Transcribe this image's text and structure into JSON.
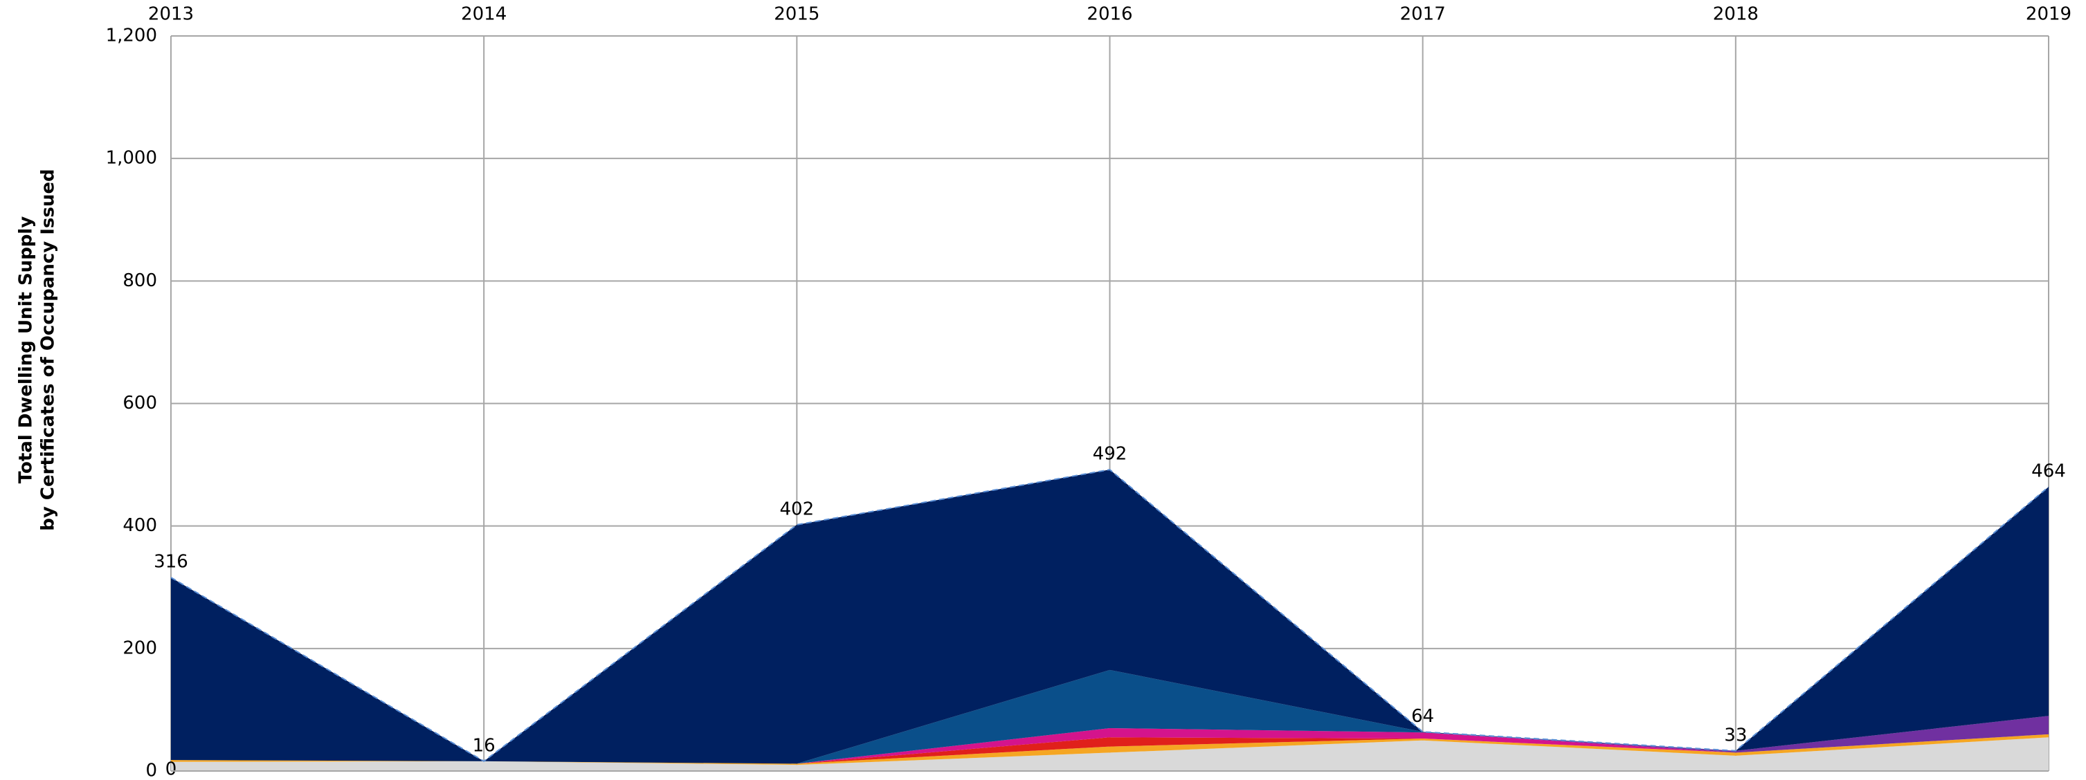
{
  "chart_data": {
    "type": "stacked_area",
    "ylabel": [
      "Total Dwelling Unit Supply",
      "by Certificates of Occupancy Issued"
    ],
    "categories": [
      "2013",
      "2014",
      "2015",
      "2016",
      "2017",
      "2018",
      "2019"
    ],
    "series": [
      {
        "color": "#d9d9d9",
        "values": [
          15,
          16,
          10,
          30,
          50,
          25,
          55
        ]
      },
      {
        "color": "#f5a623",
        "values": [
          3,
          0,
          2,
          10,
          3,
          5,
          5
        ]
      },
      {
        "color": "#e0201b",
        "values": [
          0,
          0,
          0,
          15,
          0,
          0,
          0
        ]
      },
      {
        "color": "#d4148c",
        "values": [
          0,
          0,
          0,
          15,
          10,
          0,
          0
        ]
      },
      {
        "color": "#7030a0",
        "values": [
          0,
          0,
          0,
          0,
          0,
          3,
          30
        ]
      },
      {
        "color": "#0a4f8a",
        "values": [
          0,
          0,
          0,
          95,
          1,
          0,
          0
        ]
      },
      {
        "color": "#002060",
        "values": [
          298,
          0,
          390,
          327,
          0,
          0,
          374
        ]
      }
    ],
    "totals": [
      316,
      16,
      402,
      492,
      64,
      33,
      464
    ],
    "annotations": [
      {
        "category": "2013",
        "value": 0
      }
    ],
    "ylim": [
      0,
      1200
    ],
    "yticks": [
      0,
      200,
      400,
      600,
      800,
      {
        "value": 1000,
        "label": "1,000"
      },
      {
        "value": 1200,
        "label": "1,200"
      }
    ],
    "grid": true
  }
}
